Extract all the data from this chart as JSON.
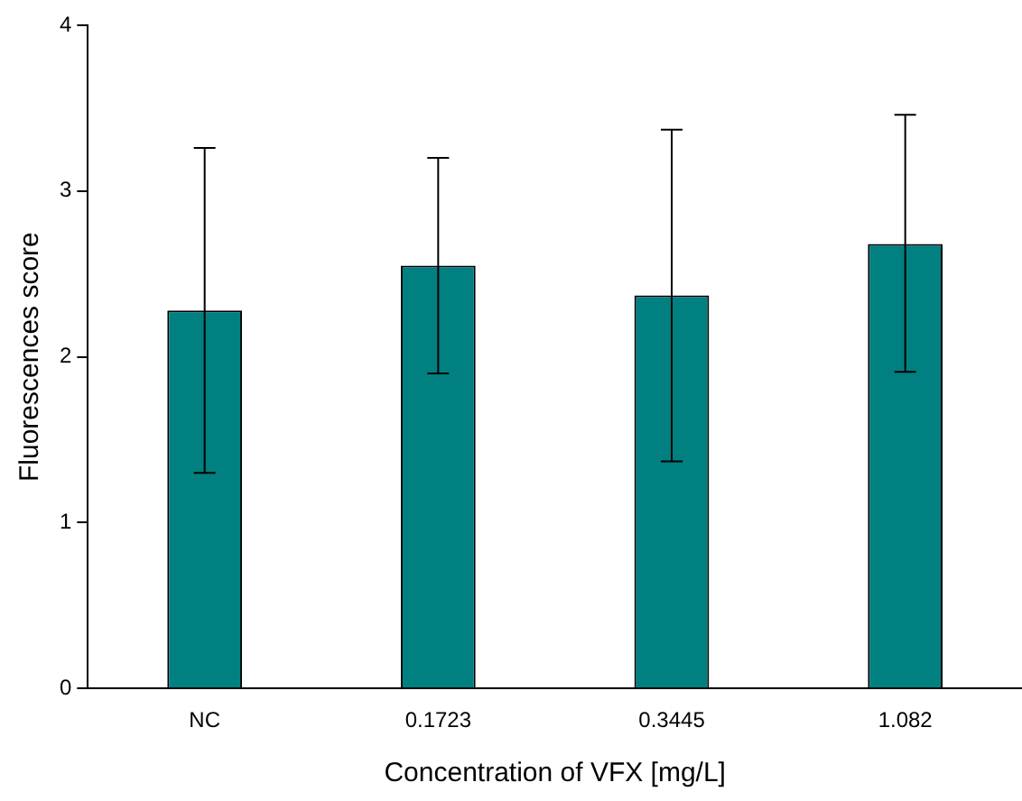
{
  "chart_data": {
    "type": "bar",
    "xlabel": "Concentration of VFX [mg/L]",
    "ylabel": "Fluorescences score",
    "categories": [
      "NC",
      "0.1723",
      "0.3445",
      "1.082"
    ],
    "values": [
      2.28,
      2.55,
      2.37,
      2.68
    ],
    "errors": [
      [
        1.3,
        3.26
      ],
      [
        1.9,
        3.2
      ],
      [
        1.37,
        3.37
      ],
      [
        1.91,
        3.46
      ]
    ],
    "color": "#008080",
    "ylim": [
      0,
      4
    ],
    "yticks": [
      0,
      1,
      2,
      3,
      4
    ],
    "grid": false,
    "legend": false
  }
}
